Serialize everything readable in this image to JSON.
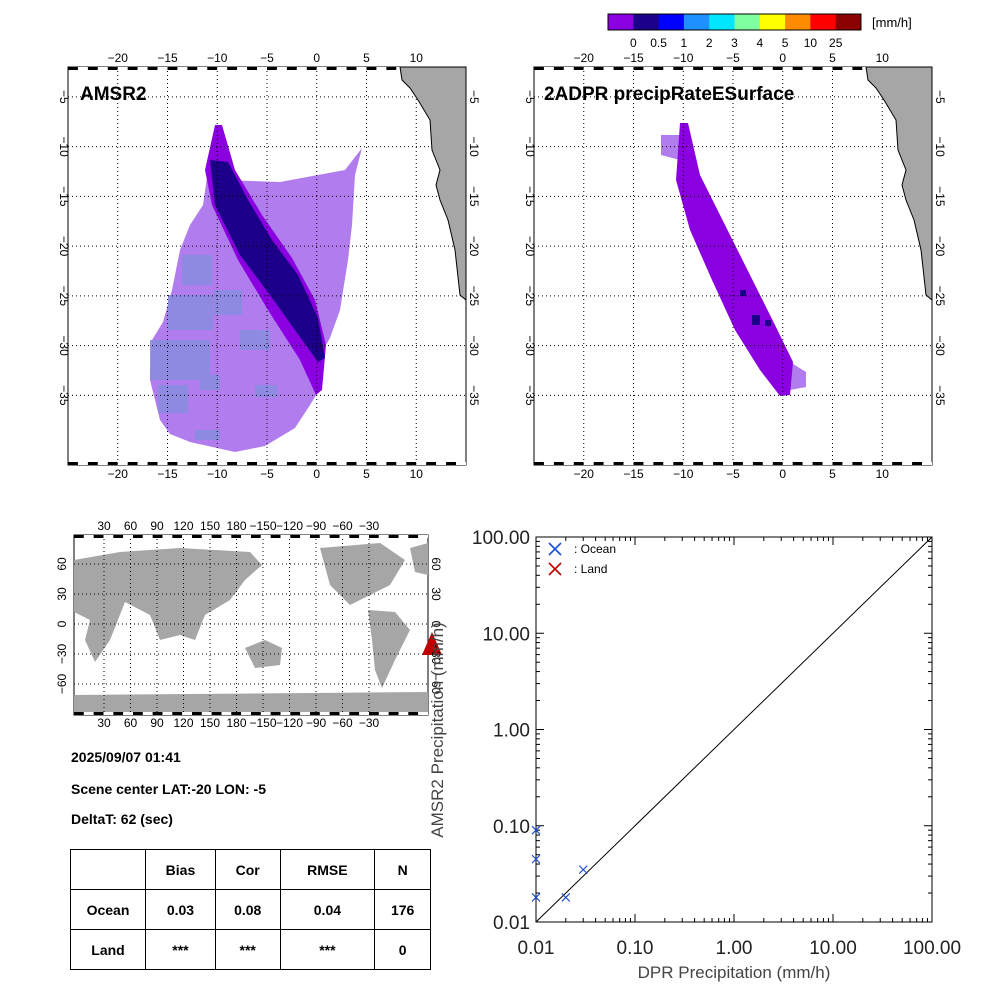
{
  "colorbar": {
    "unit": "[mm/h]",
    "ticks": [
      "0",
      "0.5",
      "1",
      "2",
      "3",
      "4",
      "5",
      "10",
      "25"
    ],
    "colors": [
      "#8a00e0",
      "#1c008a",
      "#0000ff",
      "#1e90ff",
      "#00e6ff",
      "#7fff9f",
      "#ffff00",
      "#ff8c00",
      "#ff0000",
      "#8b0000"
    ]
  },
  "panels": {
    "amsr2": {
      "title": "AMSR2",
      "lon_ticks": [
        "−20",
        "−15",
        "−10",
        "−5",
        "0",
        "5",
        "10"
      ],
      "lat_ticks": [
        "−5",
        "−10",
        "−15",
        "−20",
        "−25",
        "−30",
        "−35"
      ]
    },
    "dpr": {
      "title": "2ADPR precipRateESurface",
      "lon_ticks": [
        "−20",
        "−15",
        "−10",
        "−5",
        "0",
        "5",
        "10"
      ],
      "lat_ticks": [
        "−5",
        "−10",
        "−15",
        "−20",
        "−25",
        "−30",
        "−35"
      ]
    },
    "world": {
      "lon_ticks": [
        "30",
        "60",
        "90",
        "120",
        "150",
        "180",
        "−150",
        "−120",
        "−90",
        "−60",
        "−30"
      ],
      "lat_ticks": [
        "60",
        "30",
        "0",
        "−30",
        "−60"
      ]
    }
  },
  "info": {
    "datetime": "2025/09/07 01:41",
    "scene_center": "Scene center LAT:-20   LON:  -5",
    "delta_t": "DeltaT:   62 (sec)"
  },
  "stats": {
    "headers": [
      "Bias",
      "Cor",
      "RMSE",
      "N"
    ],
    "rows": [
      {
        "label": "Ocean",
        "values": [
          "0.03",
          "0.08",
          "0.04",
          "176"
        ]
      },
      {
        "label": "Land",
        "values": [
          "***",
          "***",
          "***",
          "0"
        ]
      }
    ]
  },
  "chart_data": {
    "type": "scatter",
    "xlabel": "DPR Precipitation (mm/h)",
    "ylabel": "AMSR2 Precipitation (mm/h)",
    "xscale": "log",
    "yscale": "log",
    "xlim": [
      0.01,
      100
    ],
    "ylim": [
      0.01,
      100
    ],
    "x_ticks": [
      "0.01",
      "0.10",
      "1.00",
      "10.00",
      "100.00"
    ],
    "y_ticks": [
      "0.01",
      "0.10",
      "1.00",
      "10.00",
      "100.00"
    ],
    "legend_position": "top-left",
    "series": [
      {
        "name": ": Ocean",
        "color": "#1f4fd6",
        "marker": "x",
        "x": [
          0.01,
          0.01,
          0.01,
          0.02,
          0.03
        ],
        "y": [
          0.09,
          0.045,
          0.018,
          0.018,
          0.035
        ]
      },
      {
        "name": ": Land",
        "color": "#c00000",
        "marker": "x",
        "x": [],
        "y": []
      }
    ],
    "reference_line": "1:1"
  }
}
